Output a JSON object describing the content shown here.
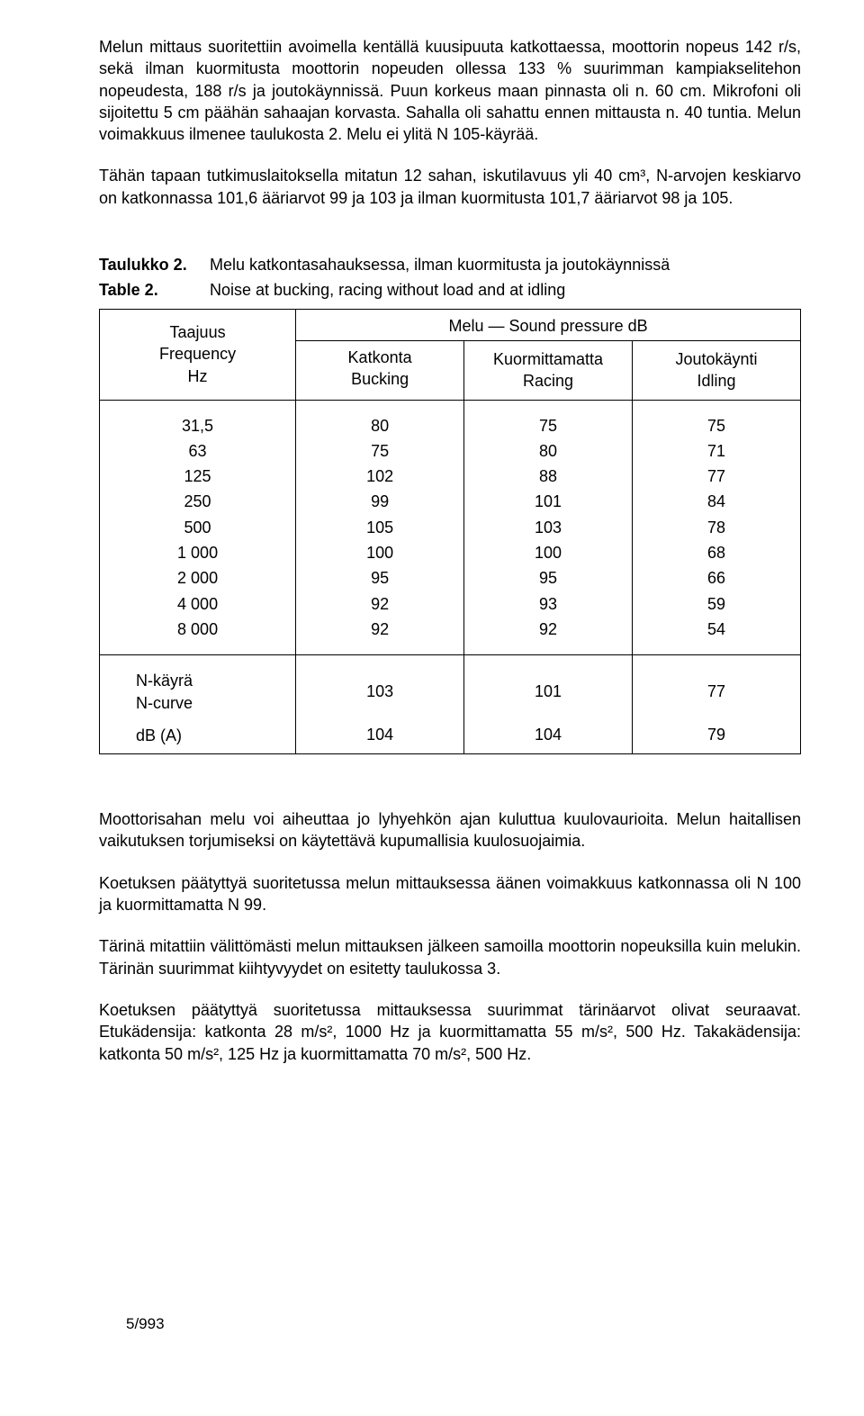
{
  "paragraphs": {
    "p1": "Melun mittaus suoritettiin avoimella kentällä kuusipuuta katkottaessa, moottorin nopeus 142 r/s, sekä ilman kuormitusta moottorin nopeuden ollessa 133 % suurimman kampiakselitehon nopeudesta, 188 r/s ja joutokäynnissä. Puun korkeus maan pinnasta oli n. 60 cm. Mikrofoni oli sijoitettu 5 cm päähän sahaajan korvasta. Sahalla oli sahattu ennen mittausta n. 40 tuntia. Melun voimakkuus ilmenee taulukosta 2. Melu ei ylitä N 105-käyrää.",
    "p2": "Tähän tapaan tutkimuslaitoksella mitatun 12 sahan, iskutilavuus yli 40 cm³, N-arvojen keskiarvo on katkonnassa 101,6 ääriarvot 99 ja 103 ja ilman kuormitusta 101,7 ääriarvot 98 ja 105.",
    "p3": "Moottorisahan melu voi aiheuttaa jo lyhyehkön ajan kuluttua kuulovaurioita. Melun haitallisen vaikutuksen torjumiseksi on käytettävä kupumallisia kuulosuojaimia.",
    "p4": "Koetuksen päätyttyä suoritetussa melun mittauksessa äänen voimakkuus katkonnassa oli N 100 ja kuormittamatta N 99.",
    "p5": "Tärinä mitattiin välittömästi melun mittauksen jälkeen samoilla moottorin nopeuksilla kuin melukin. Tärinän suurimmat kiihtyvyydet on esitetty taulukossa 3.",
    "p6": "Koetuksen päätyttyä suoritetussa mittauksessa suurimmat tärinäarvot olivat seuraavat. Etukädensija: katkonta 28 m/s², 1000 Hz ja kuormittamatta 55 m/s², 500 Hz. Takakädensija: katkonta 50 m/s², 125 Hz ja kuormittamatta 70 m/s², 500 Hz."
  },
  "caption": {
    "label_fi": "Taulukko 2.",
    "text_fi": "Melu katkontasahauksessa, ilman kuormitusta ja joutokäynnissä",
    "label_en": "Table 2.",
    "text_en": "Noise at bucking, racing without load and at idling"
  },
  "table": {
    "head": {
      "freq_fi": "Taajuus",
      "freq_en": "Frequency",
      "freq_unit": "Hz",
      "group": "Melu — Sound pressure  dB",
      "col1_fi": "Katkonta",
      "col1_en": "Bucking",
      "col2_fi": "Kuormittamatta",
      "col2_en": "Racing",
      "col3_fi": "Joutokäynti",
      "col3_en": "Idling"
    },
    "rows": [
      {
        "f": "31,5",
        "c1": "80",
        "c2": "75",
        "c3": "75"
      },
      {
        "f": "63",
        "c1": "75",
        "c2": "80",
        "c3": "71"
      },
      {
        "f": "125",
        "c1": "102",
        "c2": "88",
        "c3": "77"
      },
      {
        "f": "250",
        "c1": "99",
        "c2": "101",
        "c3": "84"
      },
      {
        "f": "500",
        "c1": "105",
        "c2": "103",
        "c3": "78"
      },
      {
        "f": "1 000",
        "c1": "100",
        "c2": "100",
        "c3": "68"
      },
      {
        "f": "2 000",
        "c1": "95",
        "c2": "95",
        "c3": "66"
      },
      {
        "f": "4 000",
        "c1": "92",
        "c2": "93",
        "c3": "59"
      },
      {
        "f": "8 000",
        "c1": "92",
        "c2": "92",
        "c3": "54"
      }
    ],
    "footer": {
      "ncurve_fi": "N-käyrä",
      "ncurve_en": "N-curve",
      "ncurve_c1": "103",
      "ncurve_c2": "101",
      "ncurve_c3": "77",
      "dba_label": "dB (A)",
      "dba_c1": "104",
      "dba_c2": "104",
      "dba_c3": "79"
    }
  },
  "pagefoot": "5/993"
}
